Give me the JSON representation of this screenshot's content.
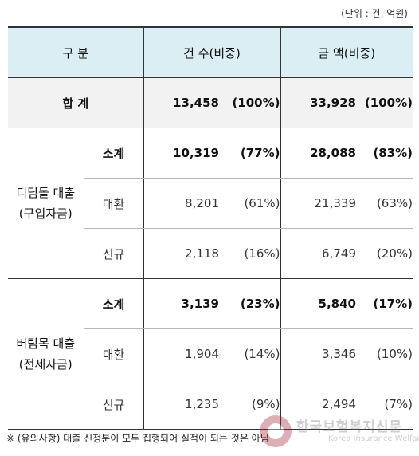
{
  "unit_note": "(단위 : 건, 억원)",
  "header": {
    "category": "구 분",
    "count": "건 수(비중)",
    "amount": "금 액(비중)"
  },
  "total": {
    "label": "합 계",
    "count": "13,458",
    "count_pct": "(100%)",
    "amount": "33,928",
    "amount_pct": "(100%)"
  },
  "groups": [
    {
      "label_line1": "디딤돌 대출",
      "label_line2": "(구입자금)",
      "rows": [
        {
          "label": "소계",
          "count": "10,319",
          "count_pct": "(77%)",
          "amount": "28,088",
          "amount_pct": "(83%)"
        },
        {
          "label": "대환",
          "count": "8,201",
          "count_pct": "(61%)",
          "amount": "21,339",
          "amount_pct": "(63%)"
        },
        {
          "label": "신규",
          "count": "2,118",
          "count_pct": "(16%)",
          "amount": "6,749",
          "amount_pct": "(20%)"
        }
      ]
    },
    {
      "label_line1": "버팀목 대출",
      "label_line2": "(전세자금)",
      "rows": [
        {
          "label": "소계",
          "count": "3,139",
          "count_pct": "(23%)",
          "amount": "5,840",
          "amount_pct": "(17%)"
        },
        {
          "label": "대환",
          "count": "1,904",
          "count_pct": "(14%)",
          "amount": "3,346",
          "amount_pct": "(10%)"
        },
        {
          "label": "신규",
          "count": "1,235",
          "count_pct": "(9%)",
          "amount": "2,494",
          "amount_pct": "(7%)"
        }
      ]
    }
  ],
  "footnote": "※ (유의사항) 대출 신청분이 모두 집행되어 실적이 되는 것은 아님",
  "watermark": {
    "name": "한국보험복지신문",
    "sub": "Korea Insurance Welfare Times"
  }
}
